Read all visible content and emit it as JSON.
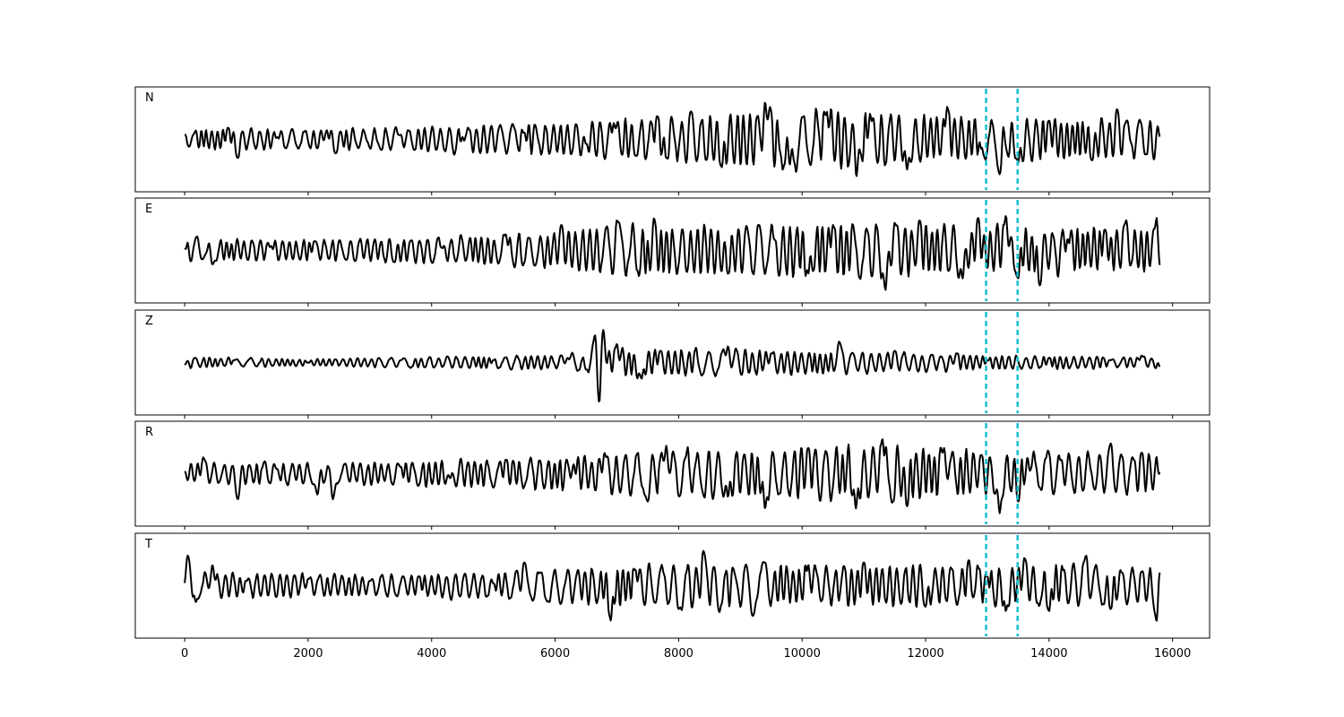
{
  "chart_data": {
    "type": "line",
    "layout": "stacked-subplots",
    "shared_x": true,
    "xlim": [
      -800,
      16600
    ],
    "xticks": [
      0,
      2000,
      4000,
      6000,
      8000,
      10000,
      12000,
      14000,
      16000
    ],
    "xtick_labels": [
      "0",
      "2000",
      "4000",
      "6000",
      "8000",
      "10000",
      "12000",
      "14000",
      "16000"
    ],
    "x_range": [
      0,
      15800
    ],
    "y_ticks_visible": false,
    "grid": false,
    "line_color": "#000000",
    "marker_color": "#17becf",
    "markers": [
      12980,
      13490
    ],
    "panels": [
      {
        "label": "N",
        "keypoints": [
          [
            0,
            0.1
          ],
          [
            700,
            0.25
          ],
          [
            860,
            -0.4
          ],
          [
            1500,
            0.05
          ],
          [
            2300,
            0.2
          ],
          [
            2450,
            -0.3
          ],
          [
            3500,
            0.1
          ],
          [
            4500,
            0.05
          ],
          [
            5500,
            0.15
          ],
          [
            6500,
            -0.1
          ],
          [
            6950,
            0.35
          ],
          [
            7300,
            -0.35
          ],
          [
            7650,
            0.5
          ],
          [
            7800,
            -0.4
          ],
          [
            8200,
            0.6
          ],
          [
            8700,
            -0.6
          ],
          [
            9400,
            0.8
          ],
          [
            9800,
            -0.55
          ],
          [
            10400,
            0.6
          ],
          [
            10880,
            -0.8
          ],
          [
            11100,
            0.55
          ],
          [
            11700,
            -0.65
          ],
          [
            12350,
            0.7
          ],
          [
            12900,
            -0.2
          ],
          [
            13200,
            -0.75
          ],
          [
            13500,
            -0.5
          ],
          [
            14000,
            0.4
          ],
          [
            14700,
            -0.45
          ],
          [
            15100,
            0.65
          ],
          [
            15800,
            0.05
          ]
        ],
        "envelope": [
          [
            0,
            0.3
          ],
          [
            3000,
            0.3
          ],
          [
            6000,
            0.45
          ],
          [
            7500,
            0.6
          ],
          [
            9500,
            0.8
          ],
          [
            11000,
            0.8
          ],
          [
            12500,
            0.6
          ],
          [
            15800,
            0.55
          ]
        ],
        "ylim": [
          -1.05,
          1.05
        ]
      },
      {
        "label": "E",
        "keypoints": [
          [
            0,
            0.05
          ],
          [
            200,
            0.3
          ],
          [
            450,
            -0.3
          ],
          [
            1400,
            0.1
          ],
          [
            2100,
            0.2
          ],
          [
            3400,
            -0.25
          ],
          [
            4200,
            0.1
          ],
          [
            5200,
            0.35
          ],
          [
            6100,
            0.55
          ],
          [
            6950,
            -0.6
          ],
          [
            7000,
            0.65
          ],
          [
            7550,
            -0.6
          ],
          [
            7600,
            0.7
          ],
          [
            8800,
            -0.5
          ],
          [
            9300,
            0.55
          ],
          [
            10100,
            -0.5
          ],
          [
            10500,
            0.55
          ],
          [
            11350,
            -0.85
          ],
          [
            11500,
            0.6
          ],
          [
            11900,
            0.65
          ],
          [
            12600,
            -0.6
          ],
          [
            12850,
            0.7
          ],
          [
            13300,
            0.75
          ],
          [
            13450,
            -0.4
          ],
          [
            13500,
            -0.6
          ],
          [
            13850,
            -0.75
          ],
          [
            14300,
            0.25
          ],
          [
            14900,
            0.45
          ],
          [
            15250,
            0.65
          ],
          [
            15750,
            0.9
          ],
          [
            15800,
            -0.35
          ]
        ],
        "envelope": [
          [
            0,
            0.3
          ],
          [
            2500,
            0.3
          ],
          [
            6000,
            0.5
          ],
          [
            7000,
            0.7
          ],
          [
            9000,
            0.65
          ],
          [
            11500,
            0.75
          ],
          [
            13000,
            0.65
          ],
          [
            15800,
            0.6
          ]
        ],
        "ylim": [
          -1.05,
          1.05
        ]
      },
      {
        "label": "Z",
        "keypoints": [
          [
            0,
            -0.05
          ],
          [
            800,
            0.05
          ],
          [
            2000,
            0.0
          ],
          [
            3500,
            0.05
          ],
          [
            5000,
            0.05
          ],
          [
            6200,
            0.1
          ],
          [
            6500,
            -0.15
          ],
          [
            6650,
            0.65
          ],
          [
            6720,
            -1.0
          ],
          [
            6780,
            0.7
          ],
          [
            7000,
            0.4
          ],
          [
            7400,
            -0.35
          ],
          [
            7700,
            0.25
          ],
          [
            8800,
            0.35
          ],
          [
            9500,
            0.2
          ],
          [
            10600,
            0.45
          ],
          [
            11500,
            0.25
          ],
          [
            12500,
            0.2
          ],
          [
            13000,
            0.05
          ],
          [
            14000,
            0.1
          ],
          [
            15000,
            0.05
          ],
          [
            15500,
            0.15
          ],
          [
            15800,
            -0.1
          ]
        ],
        "envelope": [
          [
            0,
            0.15
          ],
          [
            2000,
            0.1
          ],
          [
            4000,
            0.15
          ],
          [
            6000,
            0.2
          ],
          [
            7000,
            0.4
          ],
          [
            9000,
            0.35
          ],
          [
            11000,
            0.3
          ],
          [
            13000,
            0.2
          ],
          [
            15800,
            0.15
          ]
        ],
        "ylim": [
          -1.05,
          1.05
        ]
      },
      {
        "label": "R",
        "keypoints": [
          [
            0,
            0.05
          ],
          [
            300,
            0.35
          ],
          [
            860,
            -0.55
          ],
          [
            1500,
            0.1
          ],
          [
            2150,
            -0.45
          ],
          [
            2400,
            -0.55
          ],
          [
            3500,
            0.15
          ],
          [
            4300,
            -0.1
          ],
          [
            5200,
            0.3
          ],
          [
            6300,
            0.2
          ],
          [
            6800,
            0.45
          ],
          [
            7500,
            -0.6
          ],
          [
            7800,
            0.6
          ],
          [
            8800,
            -0.5
          ],
          [
            9400,
            -0.75
          ],
          [
            10100,
            0.55
          ],
          [
            10870,
            -0.75
          ],
          [
            11300,
            0.75
          ],
          [
            11700,
            -0.7
          ],
          [
            12300,
            0.55
          ],
          [
            12900,
            0.4
          ],
          [
            13200,
            -0.85
          ],
          [
            13500,
            -0.6
          ],
          [
            13650,
            0.35
          ],
          [
            14200,
            0.3
          ],
          [
            15000,
            0.65
          ],
          [
            15500,
            0.45
          ],
          [
            15800,
            0.05
          ]
        ],
        "envelope": [
          [
            0,
            0.3
          ],
          [
            3000,
            0.3
          ],
          [
            6000,
            0.45
          ],
          [
            8000,
            0.65
          ],
          [
            10000,
            0.7
          ],
          [
            11500,
            0.75
          ],
          [
            13000,
            0.6
          ],
          [
            15800,
            0.55
          ]
        ],
        "ylim": [
          -1.05,
          1.05
        ]
      },
      {
        "label": "T",
        "keypoints": [
          [
            0,
            -0.1
          ],
          [
            50,
            0.65
          ],
          [
            180,
            -0.35
          ],
          [
            450,
            0.45
          ],
          [
            1000,
            0.1
          ],
          [
            2000,
            0.15
          ],
          [
            3000,
            0.1
          ],
          [
            3800,
            0.2
          ],
          [
            5000,
            0.05
          ],
          [
            5500,
            0.5
          ],
          [
            6900,
            -0.75
          ],
          [
            7300,
            0.35
          ],
          [
            8000,
            -0.5
          ],
          [
            8400,
            0.75
          ],
          [
            9200,
            -0.65
          ],
          [
            9400,
            0.5
          ],
          [
            10100,
            0.45
          ],
          [
            11000,
            0.5
          ],
          [
            12000,
            -0.45
          ],
          [
            12700,
            0.55
          ],
          [
            13000,
            0.2
          ],
          [
            13300,
            -0.55
          ],
          [
            13600,
            0.6
          ],
          [
            14000,
            -0.55
          ],
          [
            14600,
            0.65
          ],
          [
            15000,
            -0.5
          ],
          [
            15500,
            0.3
          ],
          [
            15750,
            -0.95
          ],
          [
            15800,
            0.3
          ]
        ],
        "envelope": [
          [
            0,
            0.35
          ],
          [
            3000,
            0.3
          ],
          [
            5000,
            0.35
          ],
          [
            6500,
            0.5
          ],
          [
            8500,
            0.65
          ],
          [
            10000,
            0.55
          ],
          [
            12000,
            0.55
          ],
          [
            15800,
            0.55
          ]
        ],
        "ylim": [
          -1.05,
          1.05
        ]
      }
    ]
  }
}
